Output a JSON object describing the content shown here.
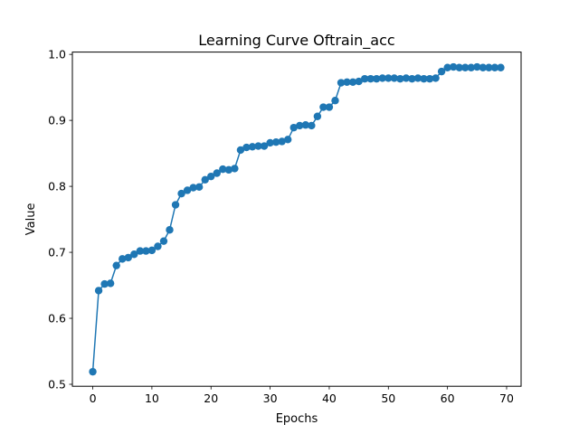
{
  "chart_data": {
    "type": "line",
    "title": "Learning Curve Oftrain_acc",
    "xlabel": "Epochs",
    "ylabel": "Value",
    "xlim": [
      -3.45,
      72.45
    ],
    "ylim": [
      0.497,
      1.0035
    ],
    "xticks": [
      0,
      10,
      20,
      30,
      40,
      50,
      60,
      70
    ],
    "yticks": [
      0.5,
      0.6,
      0.7,
      0.8,
      0.9,
      1.0
    ],
    "xtick_labels": [
      "0",
      "10",
      "20",
      "30",
      "40",
      "50",
      "60",
      "70"
    ],
    "ytick_labels": [
      "0.5",
      "0.6",
      "0.7",
      "0.8",
      "0.9",
      "1.0"
    ],
    "grid": false,
    "marker": "circle",
    "color": "#1f77b4",
    "series": [
      {
        "x": [
          0,
          1,
          2,
          3,
          4,
          5,
          6,
          7,
          8,
          9,
          10,
          11,
          12,
          13,
          14,
          15,
          16,
          17,
          18,
          19,
          20,
          21,
          22,
          23,
          24,
          25,
          26,
          27,
          28,
          29,
          30,
          31,
          32,
          33,
          34,
          35,
          36,
          37,
          38,
          39,
          40,
          41,
          42,
          43,
          44,
          45,
          46,
          47,
          48,
          49,
          50,
          51,
          52,
          53,
          54,
          55,
          56,
          57,
          58,
          59,
          60,
          61,
          62,
          63,
          64,
          65,
          66,
          67,
          68,
          69
        ],
        "values": [
          0.519,
          0.642,
          0.652,
          0.653,
          0.68,
          0.69,
          0.692,
          0.697,
          0.702,
          0.702,
          0.703,
          0.709,
          0.717,
          0.734,
          0.772,
          0.789,
          0.794,
          0.798,
          0.799,
          0.81,
          0.815,
          0.82,
          0.826,
          0.825,
          0.827,
          0.855,
          0.859,
          0.86,
          0.861,
          0.861,
          0.866,
          0.867,
          0.868,
          0.871,
          0.889,
          0.892,
          0.893,
          0.892,
          0.906,
          0.92,
          0.92,
          0.93,
          0.957,
          0.958,
          0.958,
          0.959,
          0.963,
          0.963,
          0.963,
          0.964,
          0.964,
          0.964,
          0.963,
          0.964,
          0.963,
          0.964,
          0.963,
          0.963,
          0.964,
          0.974,
          0.98,
          0.981,
          0.98,
          0.98,
          0.98,
          0.981,
          0.98,
          0.98,
          0.98,
          0.98
        ]
      }
    ]
  }
}
